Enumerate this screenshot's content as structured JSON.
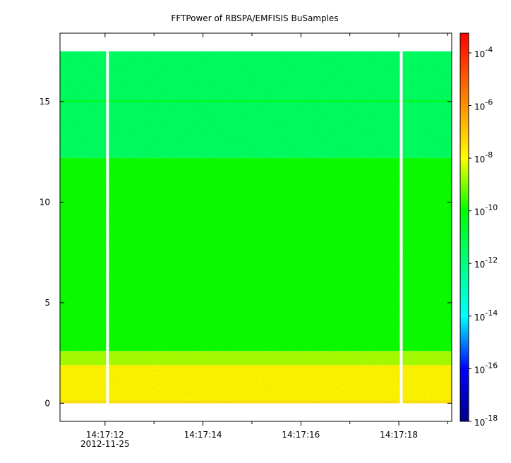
{
  "chart_data": {
    "type": "spectrogram",
    "title": "FFTPower of RBSPA/EMFISIS  BuSamples",
    "xlim": [
      11.08,
      19.08
    ],
    "xticks": [
      {
        "value": 12,
        "label": "14:17:12"
      },
      {
        "value": 14,
        "label": "14:17:14"
      },
      {
        "value": 16,
        "label": "14:17:16"
      },
      {
        "value": 18,
        "label": "14:17:18"
      }
    ],
    "xminorticks": [
      13,
      15,
      17,
      19
    ],
    "date_label": "2012-11-25",
    "ylim": [
      -0.9,
      18.4
    ],
    "yticks": [
      0,
      5,
      10,
      15
    ],
    "bands": [
      {
        "ymin": 0,
        "ymax": 0.15,
        "power": 3e-08
      },
      {
        "ymin": 0.15,
        "ymax": 1.9,
        "power": 1.5e-08
      },
      {
        "ymin": 1.9,
        "ymax": 2.6,
        "power": 2e-09
      },
      {
        "ymin": 2.6,
        "ymax": 12.2,
        "power": 1.2e-10
      },
      {
        "ymin": 12.2,
        "ymax": 17.5,
        "power": 3e-12
      },
      {
        "ymin": 14.97,
        "ymax": 15.07,
        "power": 3e-11
      }
    ],
    "gaps": [
      12.05,
      18.05
    ],
    "log_color_scale": true,
    "clim": [
      1e-18,
      0.00056
    ],
    "colormap": [
      {
        "value": 1e-18,
        "color": "#00008b"
      },
      {
        "value": 1e-16,
        "color": "#0000ff"
      },
      {
        "value": 1e-14,
        "color": "#00ffff"
      },
      {
        "value": 1e-10,
        "color": "#00ff00"
      },
      {
        "value": 1e-08,
        "color": "#ffff00"
      },
      {
        "value": 1e-06,
        "color": "#ff9000"
      },
      {
        "value": 0.00056,
        "color": "#ff0000"
      }
    ],
    "cticks": [
      {
        "value": 0.0001,
        "label": "10",
        "exponent": "-4"
      },
      {
        "value": 1e-06,
        "label": "10",
        "exponent": "-6"
      },
      {
        "value": 1e-08,
        "label": "10",
        "exponent": "-8"
      },
      {
        "value": 1e-10,
        "label": "10",
        "exponent": "-10"
      },
      {
        "value": 1e-12,
        "label": "10",
        "exponent": "-12"
      },
      {
        "value": 1e-14,
        "label": "10",
        "exponent": "-14"
      },
      {
        "value": 1e-16,
        "label": "10",
        "exponent": "-16"
      },
      {
        "value": 1e-18,
        "label": "10",
        "exponent": "-18"
      }
    ]
  }
}
